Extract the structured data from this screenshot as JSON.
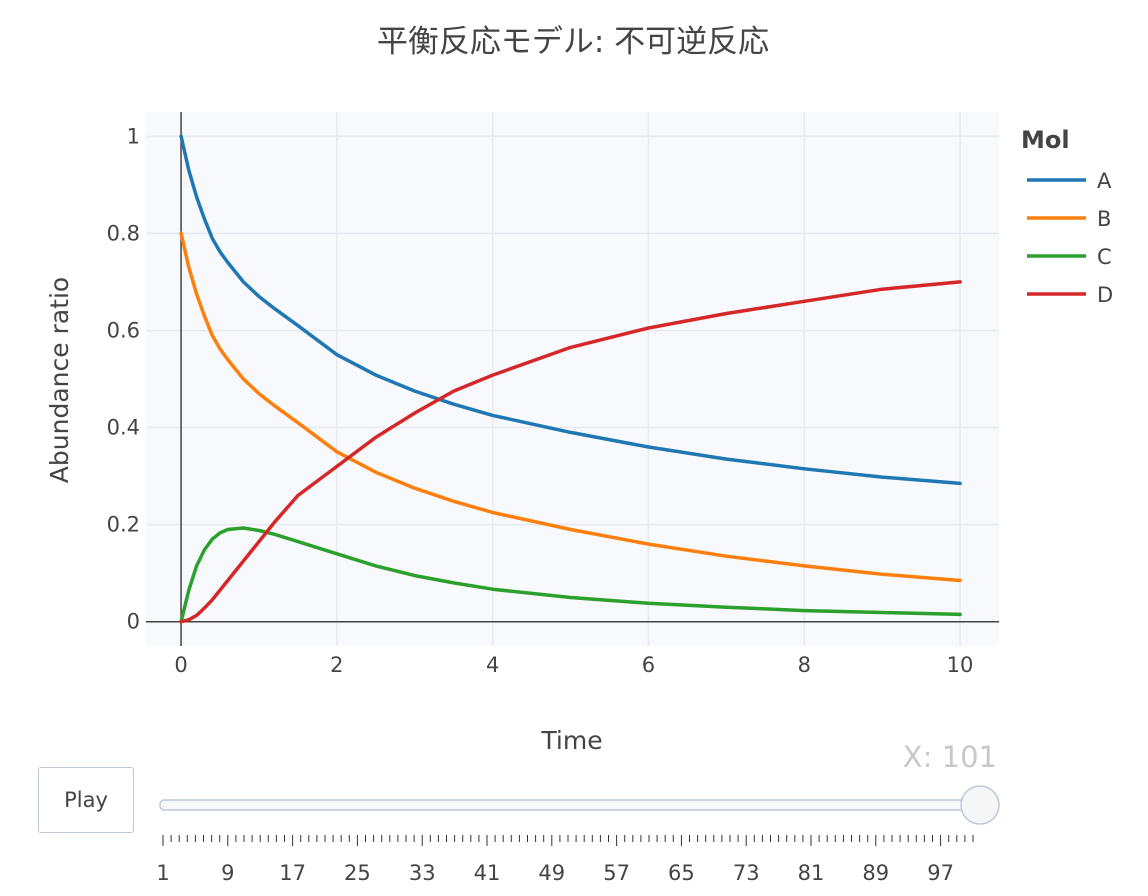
{
  "chart_data": {
    "type": "line",
    "title": "平衡反応モデル: 不可逆反応",
    "xlabel": "Time",
    "ylabel": "Abundance ratio",
    "xlim": [
      -0.45,
      10.5
    ],
    "ylim": [
      -0.05,
      1.05
    ],
    "xticks": [
      0,
      2,
      4,
      6,
      8,
      10
    ],
    "yticks": [
      0,
      0.2,
      0.4,
      0.6,
      0.8,
      1
    ],
    "ytick_labels": [
      "0",
      "0.2",
      "0.4",
      "0.6",
      "0.8",
      "1"
    ],
    "grid": true,
    "legend": {
      "title": "Mol",
      "placement": "right"
    },
    "x": [
      0,
      0.1,
      0.2,
      0.3,
      0.4,
      0.5,
      0.6,
      0.8,
      1.0,
      1.2,
      1.5,
      2.0,
      2.5,
      3.0,
      3.5,
      4.0,
      5.0,
      6.0,
      7.0,
      8.0,
      9.0,
      10.0
    ],
    "series": [
      {
        "name": "A",
        "color": "#1f77b4",
        "values": [
          1.0,
          0.93,
          0.875,
          0.83,
          0.79,
          0.762,
          0.74,
          0.7,
          0.67,
          0.645,
          0.61,
          0.55,
          0.508,
          0.475,
          0.448,
          0.425,
          0.39,
          0.36,
          0.335,
          0.315,
          0.298,
          0.285
        ]
      },
      {
        "name": "B",
        "color": "#ff7f0e",
        "values": [
          0.8,
          0.73,
          0.675,
          0.63,
          0.59,
          0.562,
          0.54,
          0.5,
          0.47,
          0.445,
          0.41,
          0.35,
          0.308,
          0.275,
          0.248,
          0.225,
          0.19,
          0.16,
          0.135,
          0.115,
          0.098,
          0.085
        ]
      },
      {
        "name": "C",
        "color": "#2ca02c",
        "values": [
          0,
          0.065,
          0.115,
          0.148,
          0.17,
          0.183,
          0.19,
          0.193,
          0.188,
          0.18,
          0.165,
          0.14,
          0.115,
          0.095,
          0.08,
          0.067,
          0.05,
          0.038,
          0.03,
          0.023,
          0.019,
          0.015
        ]
      },
      {
        "name": "D",
        "color": "#d62728",
        "values": [
          0,
          0.004,
          0.013,
          0.028,
          0.045,
          0.065,
          0.085,
          0.125,
          0.165,
          0.205,
          0.26,
          0.32,
          0.38,
          0.43,
          0.475,
          0.508,
          0.565,
          0.605,
          0.635,
          0.66,
          0.685,
          0.7
        ]
      }
    ]
  },
  "controls": {
    "play_label": "Play",
    "slider_prefix": "X: ",
    "slider_value": "101",
    "slider_min": 1,
    "slider_max": 101,
    "slider_labels": [
      "1",
      "9",
      "17",
      "25",
      "33",
      "41",
      "49",
      "57",
      "65",
      "73",
      "81",
      "89",
      "97"
    ]
  },
  "colors": {
    "plot_bg": "#f8f9fc",
    "grid": "#e6e9f1",
    "zero_line": "#444444",
    "slider_rail": "#bec8d9"
  }
}
